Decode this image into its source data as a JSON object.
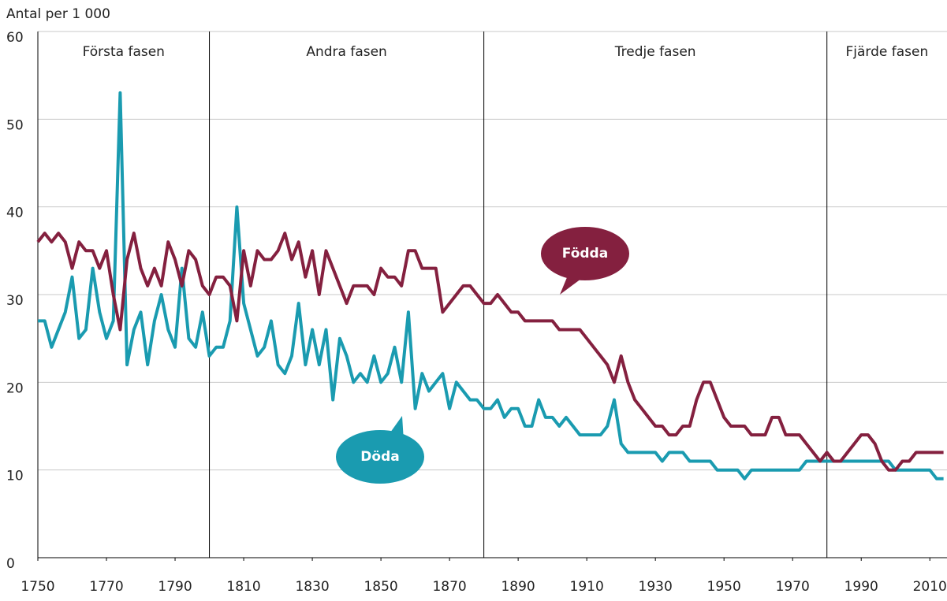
{
  "chart_data": {
    "type": "line",
    "y_label": "Antal per 1 000",
    "x": [
      1750,
      1752,
      1754,
      1756,
      1758,
      1760,
      1762,
      1764,
      1766,
      1768,
      1770,
      1772,
      1774,
      1776,
      1778,
      1780,
      1782,
      1784,
      1786,
      1788,
      1790,
      1792,
      1794,
      1796,
      1798,
      1800,
      1802,
      1804,
      1806,
      1808,
      1810,
      1812,
      1814,
      1816,
      1818,
      1820,
      1822,
      1824,
      1826,
      1828,
      1830,
      1832,
      1834,
      1836,
      1838,
      1840,
      1842,
      1844,
      1846,
      1848,
      1850,
      1852,
      1854,
      1856,
      1858,
      1860,
      1862,
      1864,
      1866,
      1868,
      1870,
      1872,
      1874,
      1876,
      1878,
      1880,
      1882,
      1884,
      1886,
      1888,
      1890,
      1892,
      1894,
      1896,
      1898,
      1900,
      1902,
      1904,
      1906,
      1908,
      1910,
      1912,
      1914,
      1916,
      1918,
      1920,
      1922,
      1924,
      1926,
      1928,
      1930,
      1932,
      1934,
      1936,
      1938,
      1940,
      1942,
      1944,
      1946,
      1948,
      1950,
      1952,
      1954,
      1956,
      1958,
      1960,
      1962,
      1964,
      1966,
      1968,
      1970,
      1972,
      1974,
      1976,
      1978,
      1980,
      1982,
      1984,
      1986,
      1988,
      1990,
      1992,
      1994,
      1996,
      1998,
      2000,
      2002,
      2004,
      2006,
      2008,
      2010,
      2012,
      2014
    ],
    "series": [
      {
        "name": "Födda",
        "color": "#84203f",
        "values": [
          36,
          37,
          36,
          37,
          36,
          33,
          36,
          35,
          35,
          33,
          35,
          30,
          26,
          34,
          37,
          33,
          31,
          33,
          31,
          36,
          34,
          31,
          35,
          34,
          31,
          30,
          32,
          32,
          31,
          27,
          35,
          31,
          35,
          34,
          34,
          35,
          37,
          34,
          36,
          32,
          35,
          30,
          35,
          33,
          31,
          29,
          31,
          31,
          31,
          30,
          33,
          32,
          32,
          31,
          35,
          35,
          33,
          33,
          33,
          28,
          29,
          30,
          31,
          31,
          30,
          29,
          29,
          30,
          29,
          28,
          28,
          27,
          27,
          27,
          27,
          27,
          26,
          26,
          26,
          26,
          25,
          24,
          23,
          22,
          20,
          23,
          20,
          18,
          17,
          16,
          15,
          15,
          14,
          14,
          15,
          15,
          18,
          20,
          20,
          18,
          16,
          15,
          15,
          15,
          14,
          14,
          14,
          16,
          16,
          14,
          14,
          14,
          13,
          12,
          11,
          12,
          11,
          11,
          12,
          13,
          14,
          14,
          13,
          11,
          10,
          10,
          11,
          11,
          12,
          12,
          12,
          12,
          12
        ]
      },
      {
        "name": "Döda",
        "color": "#1a9bb0",
        "values": [
          27,
          27,
          24,
          26,
          28,
          32,
          25,
          26,
          33,
          28,
          25,
          27,
          53,
          22,
          26,
          28,
          22,
          27,
          30,
          26,
          24,
          33,
          25,
          24,
          28,
          23,
          24,
          24,
          27,
          40,
          29,
          26,
          23,
          24,
          27,
          22,
          21,
          23,
          29,
          22,
          26,
          22,
          26,
          18,
          25,
          23,
          20,
          21,
          20,
          23,
          20,
          21,
          24,
          20,
          28,
          17,
          21,
          19,
          20,
          21,
          17,
          20,
          19,
          18,
          18,
          17,
          17,
          18,
          16,
          17,
          17,
          15,
          15,
          18,
          16,
          16,
          15,
          16,
          15,
          14,
          14,
          14,
          14,
          15,
          18,
          13,
          12,
          12,
          12,
          12,
          12,
          11,
          12,
          12,
          12,
          11,
          11,
          11,
          11,
          10,
          10,
          10,
          10,
          9,
          10,
          10,
          10,
          10,
          10,
          10,
          10,
          10,
          11,
          11,
          11,
          11,
          11,
          11,
          11,
          11,
          11,
          11,
          11,
          11,
          11,
          10,
          10,
          10,
          10,
          10,
          10,
          9,
          9
        ]
      }
    ],
    "phases": [
      {
        "label": "Första fasen",
        "from": 1750,
        "to": 1800
      },
      {
        "label": "Andra fasen",
        "from": 1800,
        "to": 1880
      },
      {
        "label": "Tredje fasen",
        "from": 1880,
        "to": 1980
      },
      {
        "label": "Fjärde fasen",
        "from": 1980,
        "to": 2015
      }
    ],
    "xlim": [
      1750,
      2015
    ],
    "xticks": [
      1750,
      1770,
      1790,
      1810,
      1830,
      1850,
      1870,
      1890,
      1910,
      1930,
      1950,
      1970,
      1990,
      2010
    ],
    "ylim": [
      0,
      60
    ],
    "yticks": [
      0,
      10,
      20,
      30,
      40,
      50,
      60
    ],
    "grid": true
  }
}
